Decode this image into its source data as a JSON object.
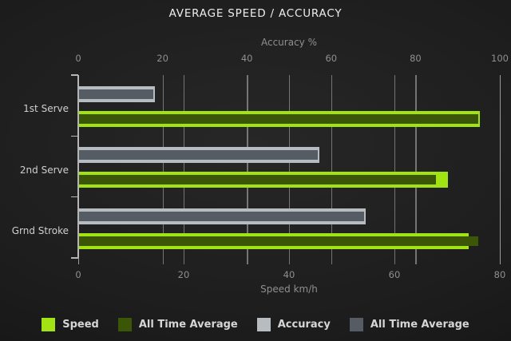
{
  "title": "AVERAGE SPEED / ACCURACY",
  "chart_data": {
    "type": "bar",
    "orientation": "horizontal",
    "title": "AVERAGE SPEED / ACCURACY",
    "categories": [
      "1st Serve",
      "2nd Serve",
      "Grnd Stroke"
    ],
    "top_axis": {
      "label": "Accuracy %",
      "range": [
        0,
        100
      ],
      "ticks": [
        0,
        20,
        40,
        60,
        80,
        100
      ]
    },
    "bottom_axis": {
      "label": "Speed km/h",
      "range": [
        0,
        80
      ],
      "ticks": [
        0,
        20,
        40,
        60,
        80
      ]
    },
    "series": [
      {
        "name": "Speed",
        "axis": "bottom",
        "role": "main",
        "color": "#a2e413",
        "values": [
          76,
          70,
          74
        ]
      },
      {
        "name": "All Time Average",
        "axis": "bottom",
        "role": "overlay",
        "color": "#3a5606",
        "values": [
          76,
          68,
          76
        ]
      },
      {
        "name": "Accuracy",
        "axis": "top",
        "role": "main",
        "color": "#b7bcc1",
        "values": [
          18,
          57,
          68
        ]
      },
      {
        "name": "All Time Average",
        "axis": "top",
        "role": "overlay",
        "color": "#565c63",
        "values": [
          18,
          57,
          68
        ]
      }
    ],
    "grid": true,
    "legend_position": "bottom",
    "background": "dark"
  },
  "legend": {
    "items": [
      {
        "label": "Speed",
        "color": "#a2e413"
      },
      {
        "label": "All Time Average",
        "color": "#3a5606"
      },
      {
        "label": "Accuracy",
        "color": "#b7bcc1"
      },
      {
        "label": "All Time Average",
        "color": "#565c63"
      }
    ]
  },
  "colors": {
    "speed": "#a2e413",
    "speed_all_time": "#3a5606",
    "accuracy": "#b7bcc1",
    "accuracy_all_time": "#565c63",
    "grid": "#b9b9b9",
    "axis": "#b5b5b5",
    "text_muted": "#8f8f8f",
    "text_bright": "#ededed"
  }
}
